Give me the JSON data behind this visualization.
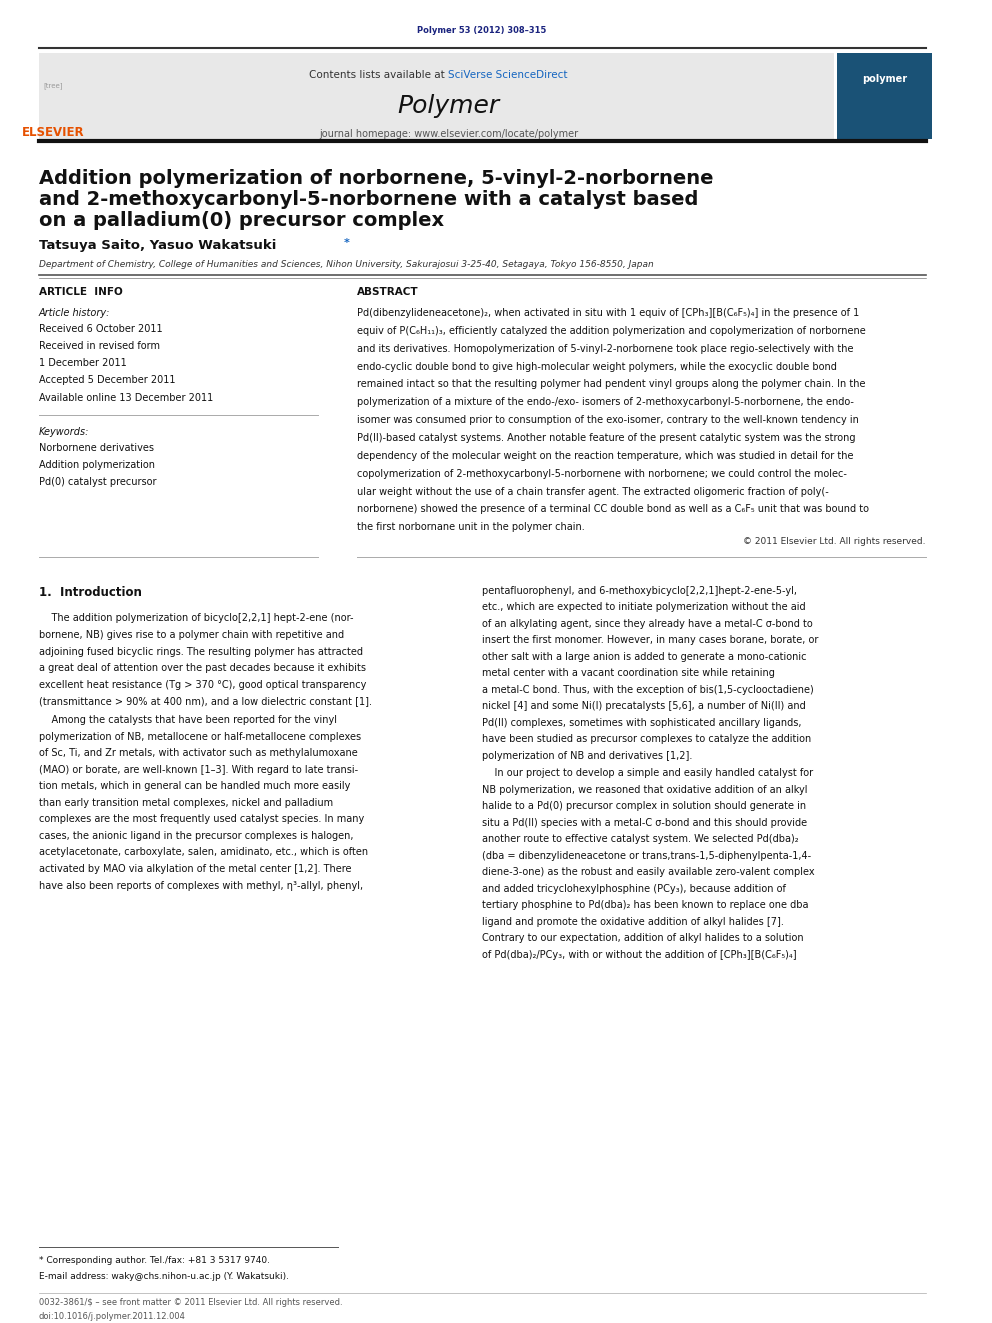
{
  "page_width": 9.92,
  "page_height": 13.23,
  "bg_color": "#ffffff",
  "journal_ref": "Polymer 53 (2012) 308–315",
  "journal_ref_color": "#1a237e",
  "header_bg": "#e8e8e8",
  "header_text": "Contents lists available at SciVerse ScienceDirect",
  "header_link_color": "#1565c0",
  "journal_name": "Polymer",
  "journal_homepage": "journal homepage: www.elsevier.com/locate/polymer",
  "article_title_line1": "Addition polymerization of norbornene, 5-vinyl-2-norbornene",
  "article_title_line2": "and 2-methoxycarbonyl-5-norbornene with a catalyst based",
  "article_title_line3": "on a palladium(0) precursor complex",
  "authors": "Tatsuya Saito, Yasuo Wakatsuki*",
  "affiliation": "Department of Chemistry, College of Humanities and Sciences, Nihon University, Sakurajosui 3-25-40, Setagaya, Tokyo 156-8550, Japan",
  "article_info_title": "ARTICLE  INFO",
  "abstract_title": "ABSTRACT",
  "article_history_label": "Article history:",
  "received1": "Received 6 October 2011",
  "received2": "Received in revised form",
  "received2b": "1 December 2011",
  "accepted": "Accepted 5 December 2011",
  "available": "Available online 13 December 2011",
  "keywords_label": "Keywords:",
  "keyword1": "Norbornene derivatives",
  "keyword2": "Addition polymerization",
  "keyword3": "Pd(0) catalyst precursor",
  "copyright": "© 2011 Elsevier Ltd. All rights reserved.",
  "intro_title": "1.  Introduction",
  "footnote1": "* Corresponding author. Tel./fax: +81 3 5317 9740.",
  "footnote2": "E-mail address: waky@chs.nihon-u.ac.jp (Y. Wakatsuki).",
  "footer1": "0032-3861/$ – see front matter © 2011 Elsevier Ltd. All rights reserved.",
  "footer2": "doi:10.1016/j.polymer.2011.12.004",
  "elsevier_color": "#e65100",
  "dark_blue": "#1a237e",
  "link_blue": "#1565c0",
  "abstract_lines": [
    "Pd(dibenzylideneacetone)₂, when activated in situ with 1 equiv of [CPh₃][B(C₆F₅)₄] in the presence of 1",
    "equiv of P(C₆H₁₁)₃, efficiently catalyzed the addition polymerization and copolymerization of norbornene",
    "and its derivatives. Homopolymerization of 5-vinyl-2-norbornene took place regio-selectively with the",
    "endo-cyclic double bond to give high-molecular weight polymers, while the exocyclic double bond",
    "remained intact so that the resulting polymer had pendent vinyl groups along the polymer chain. In the",
    "polymerization of a mixture of the endo-/exo- isomers of 2-methoxycarbonyl-5-norbornene, the endo-",
    "isomer was consumed prior to consumption of the exo-isomer, contrary to the well-known tendency in",
    "Pd(II)-based catalyst systems. Another notable feature of the present catalytic system was the strong",
    "dependency of the molecular weight on the reaction temperature, which was studied in detail for the",
    "copolymerization of 2-methoxycarbonyl-5-norbornene with norbornene; we could control the molec-",
    "ular weight without the use of a chain transfer agent. The extracted oligomeric fraction of poly(-",
    "norbornene) showed the presence of a terminal CC double bond as well as a C₆F₅ unit that was bound to",
    "the first norbornane unit in the polymer chain."
  ],
  "col1_para1_lines": [
    "    The addition polymerization of bicyclo[2,2,1] hept-2-ene (nor-",
    "bornene, NB) gives rise to a polymer chain with repetitive and",
    "adjoining fused bicyclic rings. The resulting polymer has attracted",
    "a great deal of attention over the past decades because it exhibits",
    "excellent heat resistance (Tg > 370 °C), good optical transparency",
    "(transmittance > 90% at 400 nm), and a low dielectric constant [1]."
  ],
  "col1_para2_lines": [
    "    Among the catalysts that have been reported for the vinyl",
    "polymerization of NB, metallocene or half-metallocene complexes",
    "of Sc, Ti, and Zr metals, with activator such as methylalumoxane",
    "(MAO) or borate, are well-known [1–3]. With regard to late transi-",
    "tion metals, which in general can be handled much more easily",
    "than early transition metal complexes, nickel and palladium",
    "complexes are the most frequently used catalyst species. In many",
    "cases, the anionic ligand in the precursor complexes is halogen,",
    "acetylacetonate, carboxylate, salen, amidinato, etc., which is often",
    "activated by MAO via alkylation of the metal center [1,2]. There",
    "have also been reports of complexes with methyl, η³-allyl, phenyl,"
  ],
  "col2_para1_lines": [
    "pentafluorophenyl, and 6-methoxybicyclo[2,2,1]hept-2-ene-5-yl,",
    "etc., which are expected to initiate polymerization without the aid",
    "of an alkylating agent, since they already have a metal-C σ-bond to",
    "insert the first monomer. However, in many cases borane, borate, or",
    "other salt with a large anion is added to generate a mono-cationic",
    "metal center with a vacant coordination site while retaining",
    "a metal-C bond. Thus, with the exception of bis(1,5-cyclooctadiene)",
    "nickel [4] and some Ni(I) precatalysts [5,6], a number of Ni(II) and",
    "Pd(II) complexes, sometimes with sophisticated ancillary ligands,",
    "have been studied as precursor complexes to catalyze the addition",
    "polymerization of NB and derivatives [1,2]."
  ],
  "col2_para2_lines": [
    "    In our project to develop a simple and easily handled catalyst for",
    "NB polymerization, we reasoned that oxidative addition of an alkyl",
    "halide to a Pd(0) precursor complex in solution should generate in",
    "situ a Pd(II) species with a metal-C σ-bond and this should provide",
    "another route to effective catalyst system. We selected Pd(dba)₂",
    "(dba = dibenzylideneacetone or trans,trans-1,5-diphenylpenta-1,4-",
    "diene-3-one) as the robust and easily available zero-valent complex",
    "and added tricyclohexylphosphine (PCy₃), because addition of",
    "tertiary phosphine to Pd(dba)₂ has been known to replace one dba",
    "ligand and promote the oxidative addition of alkyl halides [7].",
    "Contrary to our expectation, addition of alkyl halides to a solution",
    "of Pd(dba)₂/PCy₃, with or without the addition of [CPh₃][B(C₆F₅)₄]"
  ]
}
